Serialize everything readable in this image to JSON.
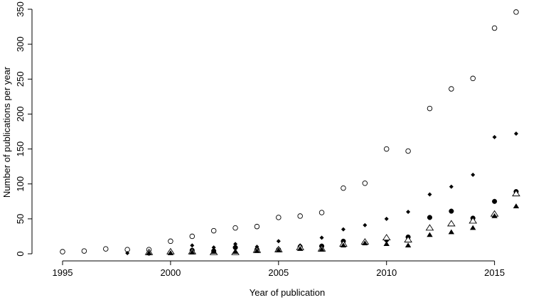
{
  "chart_data": {
    "type": "scatter",
    "title": "",
    "xlabel": "Year of publication",
    "ylabel": "Number of publications per year",
    "xlim": [
      1995,
      2016
    ],
    "ylim": [
      0,
      350
    ],
    "x_ticks": [
      1995,
      2000,
      2005,
      2010,
      2015
    ],
    "y_ticks": [
      0,
      50,
      100,
      150,
      200,
      250,
      300,
      350
    ],
    "grid": false,
    "legend": "none",
    "series": [
      {
        "marker": "open-circle",
        "x": [
          1995,
          1996,
          1997,
          1998,
          1999,
          2000,
          2001,
          2002,
          2003,
          2004,
          2005,
          2006,
          2007,
          2008,
          2009,
          2010,
          2011,
          2012,
          2013,
          2014,
          2015,
          2016
        ],
        "y": [
          3,
          4,
          7,
          6,
          6,
          18,
          25,
          33,
          37,
          39,
          52,
          54,
          59,
          94,
          101,
          150,
          147,
          208,
          236,
          251,
          323,
          346
        ]
      },
      {
        "marker": "filled-diamond",
        "x": [
          1998,
          1999,
          2000,
          2001,
          2002,
          2003,
          2004,
          2005,
          2006,
          2007,
          2008,
          2009,
          2010,
          2011,
          2012,
          2013,
          2014,
          2015,
          2016
        ],
        "y": [
          1,
          2,
          3,
          12,
          9,
          14,
          10,
          18,
          12,
          23,
          35,
          41,
          50,
          60,
          85,
          96,
          113,
          167,
          172
        ]
      },
      {
        "marker": "filled-circle",
        "x": [
          1999,
          2000,
          2001,
          2002,
          2003,
          2004,
          2005,
          2006,
          2007,
          2008,
          2009,
          2010,
          2011,
          2012,
          2013,
          2014,
          2015,
          2016
        ],
        "y": [
          1,
          2,
          5,
          4,
          9,
          6,
          6,
          10,
          11,
          18,
          16,
          20,
          24,
          52,
          61,
          51,
          75,
          89
        ]
      },
      {
        "marker": "open-triangle",
        "x": [
          1999,
          2000,
          2001,
          2002,
          2003,
          2004,
          2005,
          2006,
          2007,
          2008,
          2009,
          2010,
          2011,
          2012,
          2013,
          2014,
          2015,
          2016
        ],
        "y": [
          2,
          3,
          3,
          2,
          2,
          5,
          6,
          9,
          7,
          14,
          17,
          23,
          20,
          37,
          43,
          47,
          57,
          86
        ]
      },
      {
        "marker": "filled-triangle",
        "x": [
          1999,
          2000,
          2001,
          2002,
          2003,
          2004,
          2005,
          2006,
          2007,
          2008,
          2009,
          2010,
          2011,
          2012,
          2013,
          2014,
          2015,
          2016
        ],
        "y": [
          1,
          1,
          2,
          3,
          3,
          4,
          5,
          7,
          6,
          12,
          15,
          14,
          12,
          27,
          31,
          37,
          54,
          68
        ]
      }
    ]
  }
}
